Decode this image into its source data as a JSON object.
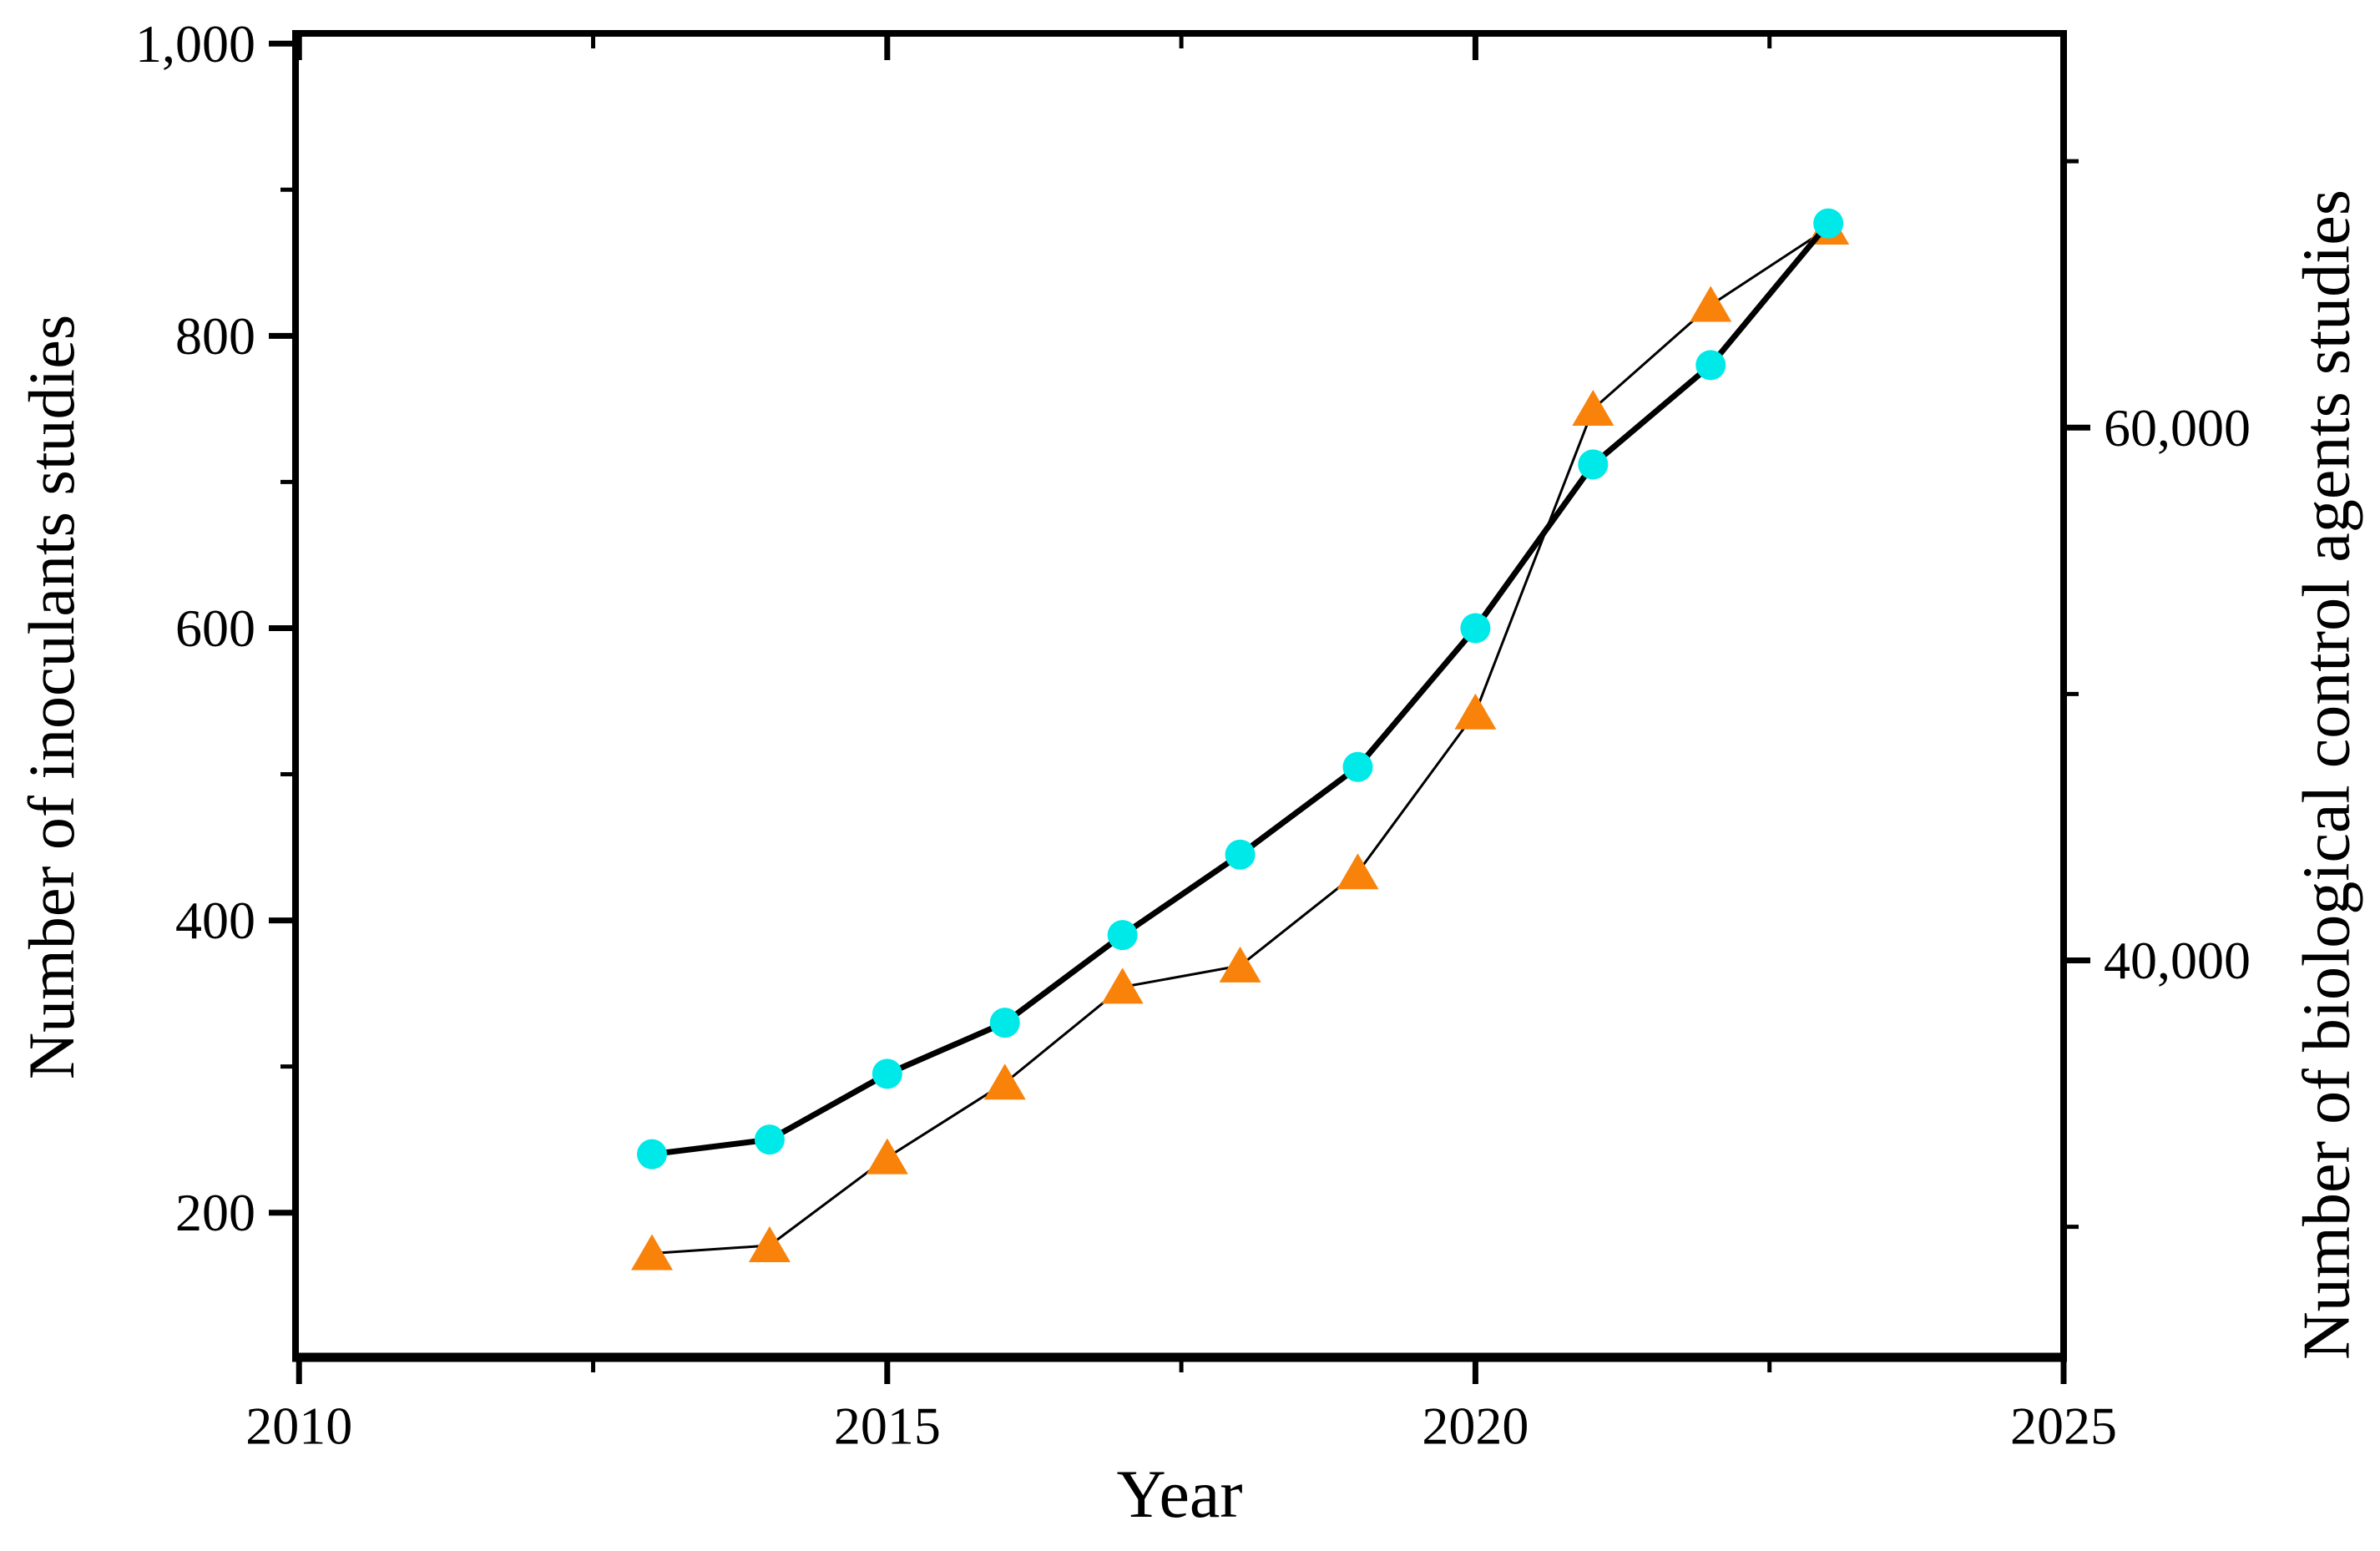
{
  "chart_data": {
    "type": "line",
    "title": "",
    "xlabel": "Year",
    "ylabel_left": "Number of inoculants studies",
    "ylabel_right": "Number of biological control agents studies",
    "x": [
      2013,
      2014,
      2015,
      2016,
      2017,
      2018,
      2019,
      2020,
      2021,
      2022,
      2023
    ],
    "series": [
      {
        "name": "Number of biological control agents studies",
        "axis": "right",
        "marker": "triangle",
        "marker_color": "#f8820a",
        "line_color": "#000000",
        "line_width": 3,
        "values": [
          29000,
          29300,
          32600,
          35400,
          39000,
          39800,
          43300,
          49300,
          60700,
          64600,
          67500
        ]
      },
      {
        "name": "Number of inoculants studies",
        "axis": "left",
        "marker": "circle",
        "marker_color": "#00e9e9",
        "line_color": "#000000",
        "line_width": 7,
        "values": [
          240,
          250,
          295,
          330,
          390,
          445,
          505,
          600,
          712,
          780,
          877
        ]
      }
    ],
    "x_ticks": {
      "major": [
        2010,
        2015,
        2020,
        2025
      ],
      "labels": [
        "2010",
        "2015",
        "2020",
        "2025"
      ],
      "minor_step": 2.5
    },
    "left_ticks": {
      "major": [
        200,
        400,
        600,
        800,
        1000
      ],
      "labels": [
        "200",
        "400",
        "600",
        "800",
        "1,000"
      ],
      "minor": [
        300,
        500,
        700,
        900
      ]
    },
    "right_ticks": {
      "major": [
        40000,
        60000
      ],
      "labels": [
        "40,000",
        "60,000"
      ],
      "minor": [
        30000,
        50000,
        70000
      ]
    },
    "xlim": [
      2009.97,
      2025.0
    ],
    "ylim_left": [
      101,
      1007
    ],
    "ylim_right": [
      25100,
      74800
    ],
    "grid": false,
    "legend": false,
    "frame": true,
    "background": "#ffffff",
    "axis_color": "#000000"
  }
}
